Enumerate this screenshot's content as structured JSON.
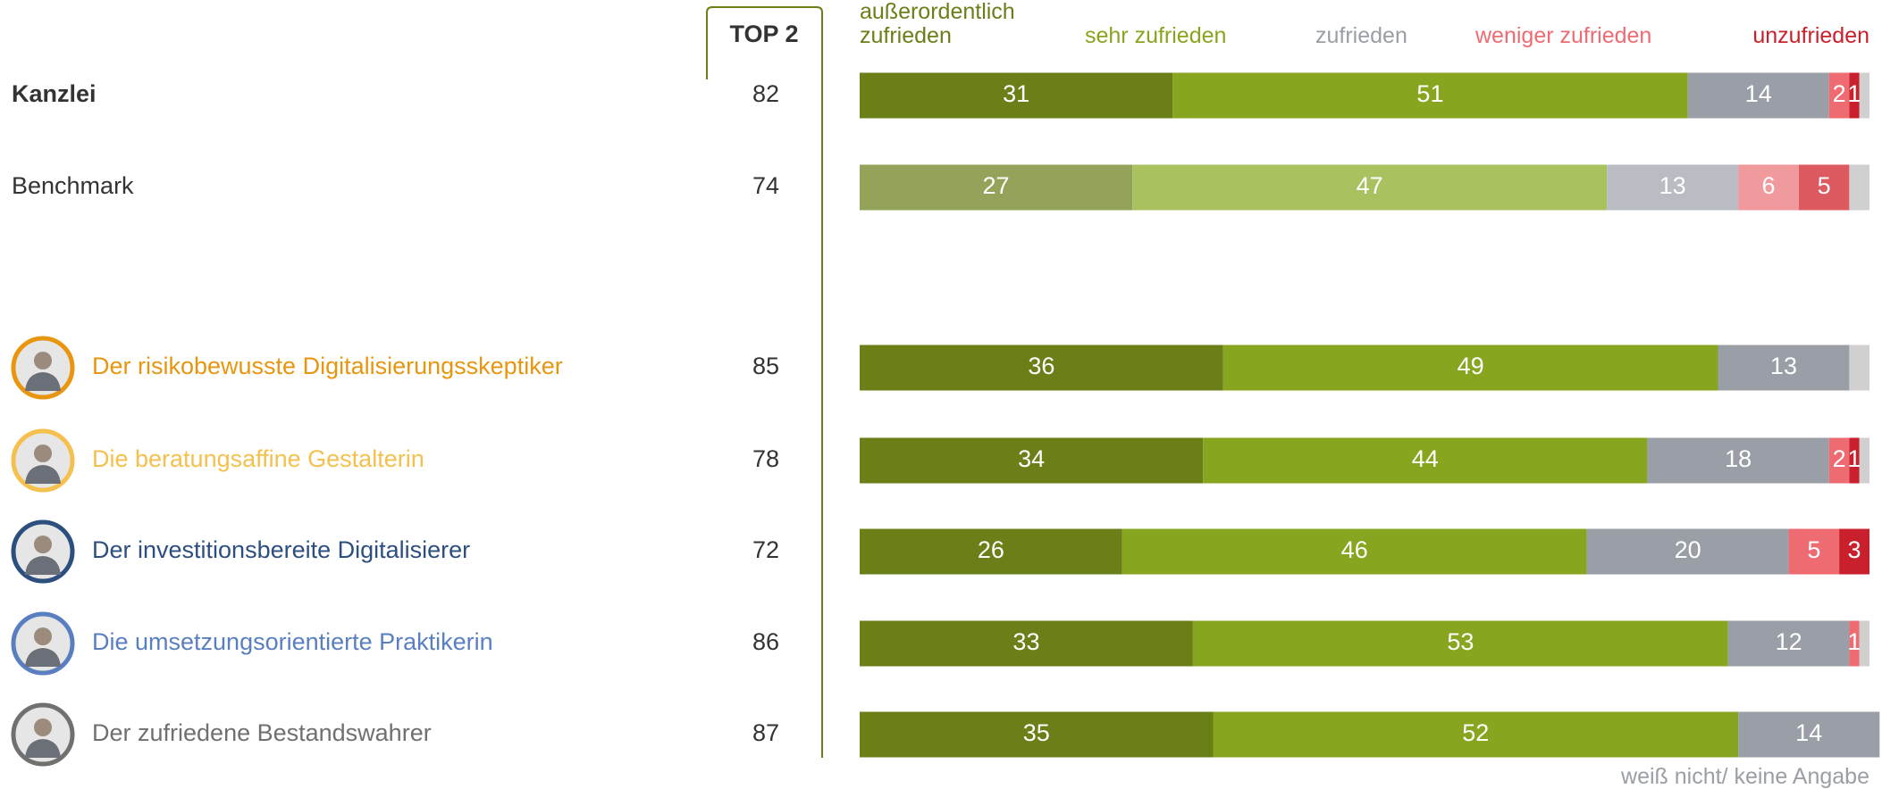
{
  "chart_data": {
    "type": "stacked_bar_h",
    "top2_header": "TOP 2",
    "categories": [
      "Kanzlei",
      "Benchmark",
      "Der risikobewusste Digitalisierungsskeptiker",
      "Die beratungsaffine Gestalterin",
      "Der investitionsbereite Digitalisierer",
      "Die umsetzungsorientierte Praktikerin",
      "Der zufriedene Bestandswahrer"
    ],
    "category_colors": [
      "#333333",
      "#333333",
      "#e8960f",
      "#f5c04d",
      "#2c4f80",
      "#5a7fc0",
      "#707070"
    ],
    "category_bold": [
      true,
      false,
      false,
      false,
      false,
      false,
      false
    ],
    "category_avatar": [
      false,
      false,
      true,
      true,
      true,
      true,
      true
    ],
    "top2": [
      82,
      74,
      85,
      78,
      72,
      86,
      87
    ],
    "muted_categories": [
      1
    ],
    "xlim": [
      0,
      100
    ],
    "series": [
      {
        "name": "außerordentlich zufrieden",
        "color": "#6a7f17",
        "muted_color": "#93a35a",
        "values": [
          31,
          27,
          36,
          34,
          26,
          33,
          35
        ]
      },
      {
        "name": "sehr zufrieden",
        "color": "#87a51e",
        "muted_color": "#a9c25f",
        "values": [
          51,
          47,
          49,
          44,
          46,
          53,
          52
        ]
      },
      {
        "name": "zufrieden",
        "color": "#9a9ea6",
        "muted_color": "#b9bcc2",
        "values": [
          14,
          13,
          13,
          18,
          20,
          12,
          14
        ]
      },
      {
        "name": "weniger zufrieden",
        "color": "#ee6b72",
        "muted_color": "#f19a9e",
        "values": [
          2,
          6,
          null,
          2,
          5,
          1,
          null
        ]
      },
      {
        "name": "unzufrieden",
        "color": "#c8202c",
        "muted_color": "#dc5a60",
        "values": [
          1,
          5,
          null,
          1,
          3,
          null,
          null
        ]
      },
      {
        "name": "weiß nicht/ keine Angabe",
        "color": "#d0d0d0",
        "muted_color": "#d0d0d0",
        "values": [
          1,
          2,
          2,
          1,
          null,
          1,
          null
        ],
        "legend_position": "bottom",
        "no_value_labels": true
      }
    ]
  }
}
